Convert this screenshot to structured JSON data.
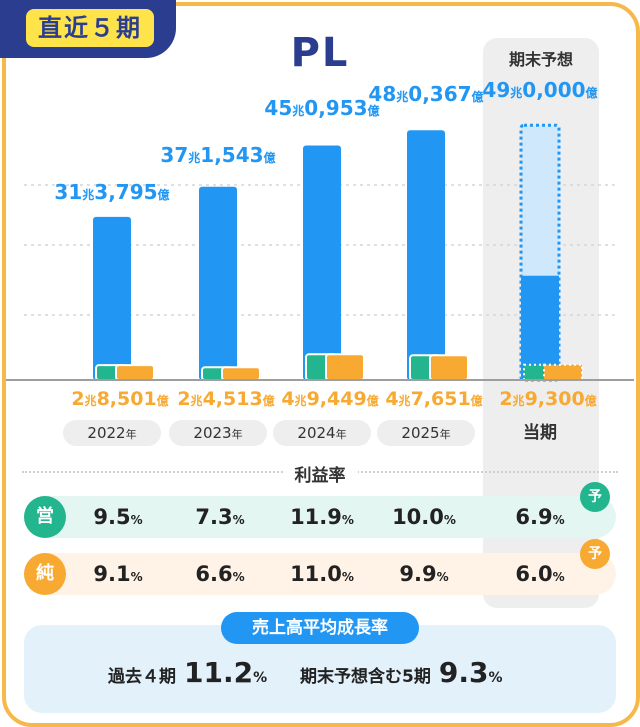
{
  "tag": "直近５期",
  "title": "PL",
  "forecast_header": "期末予想",
  "chart_data": {
    "type": "bar",
    "title": "PL",
    "categories": [
      "2022年",
      "2023年",
      "2024年",
      "2025年",
      "当期"
    ],
    "series": [
      {
        "values": [
          31.3795,
          37.1543,
          45.0953,
          48.0367,
          49.0
        ]
      },
      {
        "values": [
          2.8501,
          2.4513,
          4.9449,
          4.7651,
          2.93
        ]
      },
      {
        "values": [
          2.8501,
          2.4513,
          4.9449,
          4.7651,
          2.93
        ]
      }
    ],
    "revenue_labels": [
      {
        "cho": "31",
        "oku": "3,795"
      },
      {
        "cho": "37",
        "oku": "1,543"
      },
      {
        "cho": "45",
        "oku": "0,953"
      },
      {
        "cho": "48",
        "oku": "0,367"
      },
      {
        "cho": "49",
        "oku": "0,000"
      }
    ],
    "profit_labels": [
      {
        "cho": "2",
        "oku": "8,501"
      },
      {
        "cho": "2",
        "oku": "4,513"
      },
      {
        "cho": "4",
        "oku": "9,449"
      },
      {
        "cho": "4",
        "oku": "7,651"
      },
      {
        "cho": "2",
        "oku": "9,300"
      }
    ],
    "forecast_index": 4,
    "ylim": [
      0,
      50
    ]
  },
  "units": {
    "cho": "兆",
    "oku": "億"
  },
  "years": [
    {
      "num": "2022",
      "suffix": "年"
    },
    {
      "num": "2023",
      "suffix": "年"
    },
    {
      "num": "2024",
      "suffix": "年"
    },
    {
      "num": "2025",
      "suffix": "年"
    },
    {
      "num": "当期",
      "suffix": ""
    }
  ],
  "rate_title": "利益率",
  "operating_label": "営",
  "net_label": "純",
  "forecast_badge": "予",
  "operating_margin": [
    "9.5",
    "7.3",
    "11.9",
    "10.0",
    "6.9"
  ],
  "net_margin": [
    "9.1",
    "6.6",
    "11.0",
    "9.9",
    "6.0"
  ],
  "pct_unit": "%",
  "cagr": {
    "title": "売上高平均成長率",
    "past_label": "過去４期",
    "past_value": "11.2",
    "incl_label": "期末予想含む5期",
    "incl_value": "9.3",
    "unit": "%"
  },
  "colors": {
    "revenue": "#2196f3",
    "forecast_fill": "#cfe8fb",
    "operating": "#22b58e",
    "net": "#f7a932"
  }
}
